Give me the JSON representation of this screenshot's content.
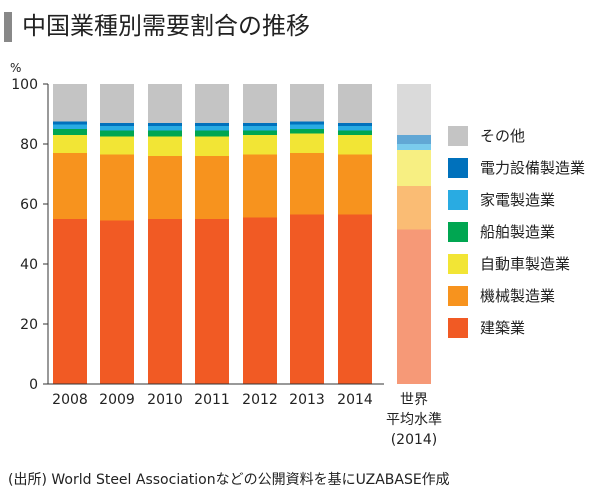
{
  "title": "中国業種別需要割合の推移",
  "source": "(出所) World Steel Associationなどの公開資料を基にUZABASE作成",
  "chart_data": {
    "type": "bar",
    "stacked": true,
    "ylabel": "%",
    "ylim": [
      0,
      100
    ],
    "yticks": [
      0,
      20,
      40,
      60,
      80,
      100
    ],
    "grid": false,
    "legend_position": "right",
    "categories": [
      "2008",
      "2009",
      "2010",
      "2011",
      "2012",
      "2013",
      "2014",
      "世界\n平均水準\n(2014)"
    ],
    "category_lines": [
      [
        "2008"
      ],
      [
        "2009"
      ],
      [
        "2010"
      ],
      [
        "2011"
      ],
      [
        "2012"
      ],
      [
        "2013"
      ],
      [
        "2014"
      ],
      [
        "世界",
        "平均水準",
        "(2014)"
      ]
    ],
    "highlight_last": true,
    "series": [
      {
        "name": "建築業",
        "color": "#f15a24",
        "values": [
          55,
          54.5,
          55,
          55,
          55.5,
          56.5,
          56.5,
          51.5
        ]
      },
      {
        "name": "機械製造業",
        "color": "#f7931e",
        "values": [
          22,
          22,
          21,
          21,
          21,
          20.5,
          20,
          14.5
        ]
      },
      {
        "name": "自動車製造業",
        "color": "#f2e535",
        "values": [
          6,
          6,
          6.5,
          6.5,
          6.5,
          6.5,
          6.5,
          12
        ]
      },
      {
        "name": "船舶製造業",
        "color": "#00a651",
        "values": [
          2,
          2,
          2,
          2,
          1.5,
          1.5,
          1.5,
          0
        ]
      },
      {
        "name": "家電製造業",
        "color": "#29abe2",
        "values": [
          1.5,
          1.5,
          1.5,
          1.5,
          1.5,
          1.5,
          1.5,
          2
        ]
      },
      {
        "name": "電力設備製造業",
        "color": "#0071bc",
        "values": [
          1,
          1,
          1,
          1,
          1,
          1,
          1,
          3
        ]
      },
      {
        "name": "その他",
        "color": "#c4c4c4",
        "values": [
          12.5,
          13,
          13,
          13,
          13,
          12.5,
          13,
          17
        ]
      }
    ],
    "legend_order": [
      6,
      5,
      4,
      3,
      2,
      1,
      0
    ]
  }
}
